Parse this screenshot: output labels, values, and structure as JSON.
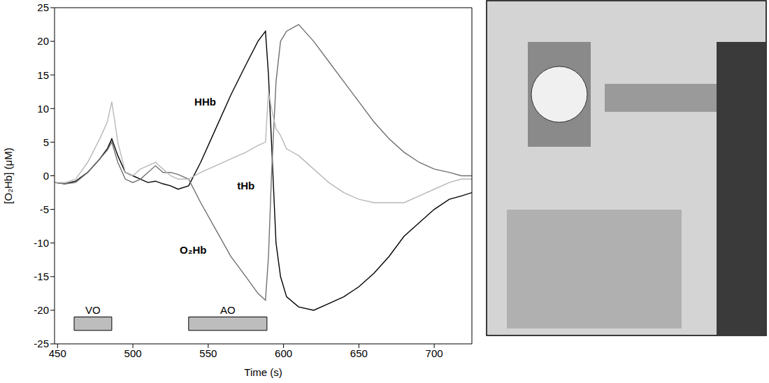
{
  "chart_data": {
    "type": "line",
    "x_label": "Time (s)",
    "y_label": "[O₂Hb] (μM)",
    "x": [
      448,
      455,
      462,
      470,
      478,
      483,
      486,
      490,
      495,
      500,
      505,
      510,
      515,
      520,
      525,
      530,
      537,
      545,
      555,
      565,
      575,
      583,
      588,
      590,
      592,
      595,
      598,
      602,
      610,
      620,
      630,
      640,
      650,
      660,
      670,
      680,
      690,
      700,
      710,
      718,
      725
    ],
    "series": [
      {
        "name": "HHb",
        "color": "#000000",
        "values": [
          -1,
          -1.2,
          -0.8,
          0.5,
          2.5,
          4,
          5.5,
          3,
          0.5,
          0,
          -0.5,
          -1,
          -0.8,
          -1.2,
          -1.5,
          -2,
          -1.5,
          2,
          7,
          12,
          16.5,
          20,
          21.5,
          15,
          5,
          -10,
          -15,
          -18,
          -19.5,
          -20,
          -19,
          -18,
          -16.5,
          -14.5,
          -12,
          -9,
          -7,
          -5,
          -3.5,
          -3,
          -2.5
        ]
      },
      {
        "name": "O₂Hb",
        "color": "#707070",
        "values": [
          -1,
          -1.2,
          -1,
          0.5,
          2.5,
          3.8,
          5,
          2,
          -0.5,
          -1,
          -0.5,
          0.5,
          1.5,
          0.5,
          0.5,
          0.2,
          -0.5,
          -4,
          -8,
          -12,
          -15,
          -17.5,
          -18.5,
          -12,
          0,
          14,
          20,
          21.5,
          22.5,
          20,
          17,
          14,
          11,
          8,
          5.5,
          3.5,
          2,
          1,
          0.5,
          0,
          0
        ]
      },
      {
        "name": "tHb",
        "color": "#b8b8b8",
        "values": [
          -1,
          -1,
          -0.5,
          2,
          5.5,
          8,
          11,
          5,
          0.5,
          0,
          1,
          1.5,
          2,
          1,
          0,
          -0.5,
          -0.5,
          0.5,
          1.5,
          2.5,
          3.5,
          4.5,
          5,
          12.5,
          10,
          7,
          6,
          4,
          3,
          1,
          -1,
          -2.5,
          -3.5,
          -4,
          -4,
          -4,
          -3,
          -2,
          -1,
          -0.5,
          -0.5
        ]
      }
    ],
    "xlim": [
      448,
      725
    ],
    "xticks": [
      450,
      500,
      550,
      600,
      650,
      700
    ],
    "ylim": [
      -25,
      25
    ],
    "yticks": [
      -25,
      -20,
      -15,
      -10,
      -5,
      0,
      5,
      10,
      15,
      20,
      25
    ],
    "annotations": [
      {
        "text": "HHb",
        "x": 548,
        "y": 11
      },
      {
        "text": "tHb",
        "x": 575,
        "y": -1.5
      },
      {
        "text": "O₂Hb",
        "x": 540,
        "y": -11
      }
    ],
    "intervals": [
      {
        "label": "VO",
        "x": [
          461,
          486
        ],
        "y": [
          -23,
          -21
        ]
      },
      {
        "label": "AO",
        "x": [
          537,
          589
        ],
        "y": [
          -23,
          -21
        ]
      }
    ],
    "grid": false
  }
}
